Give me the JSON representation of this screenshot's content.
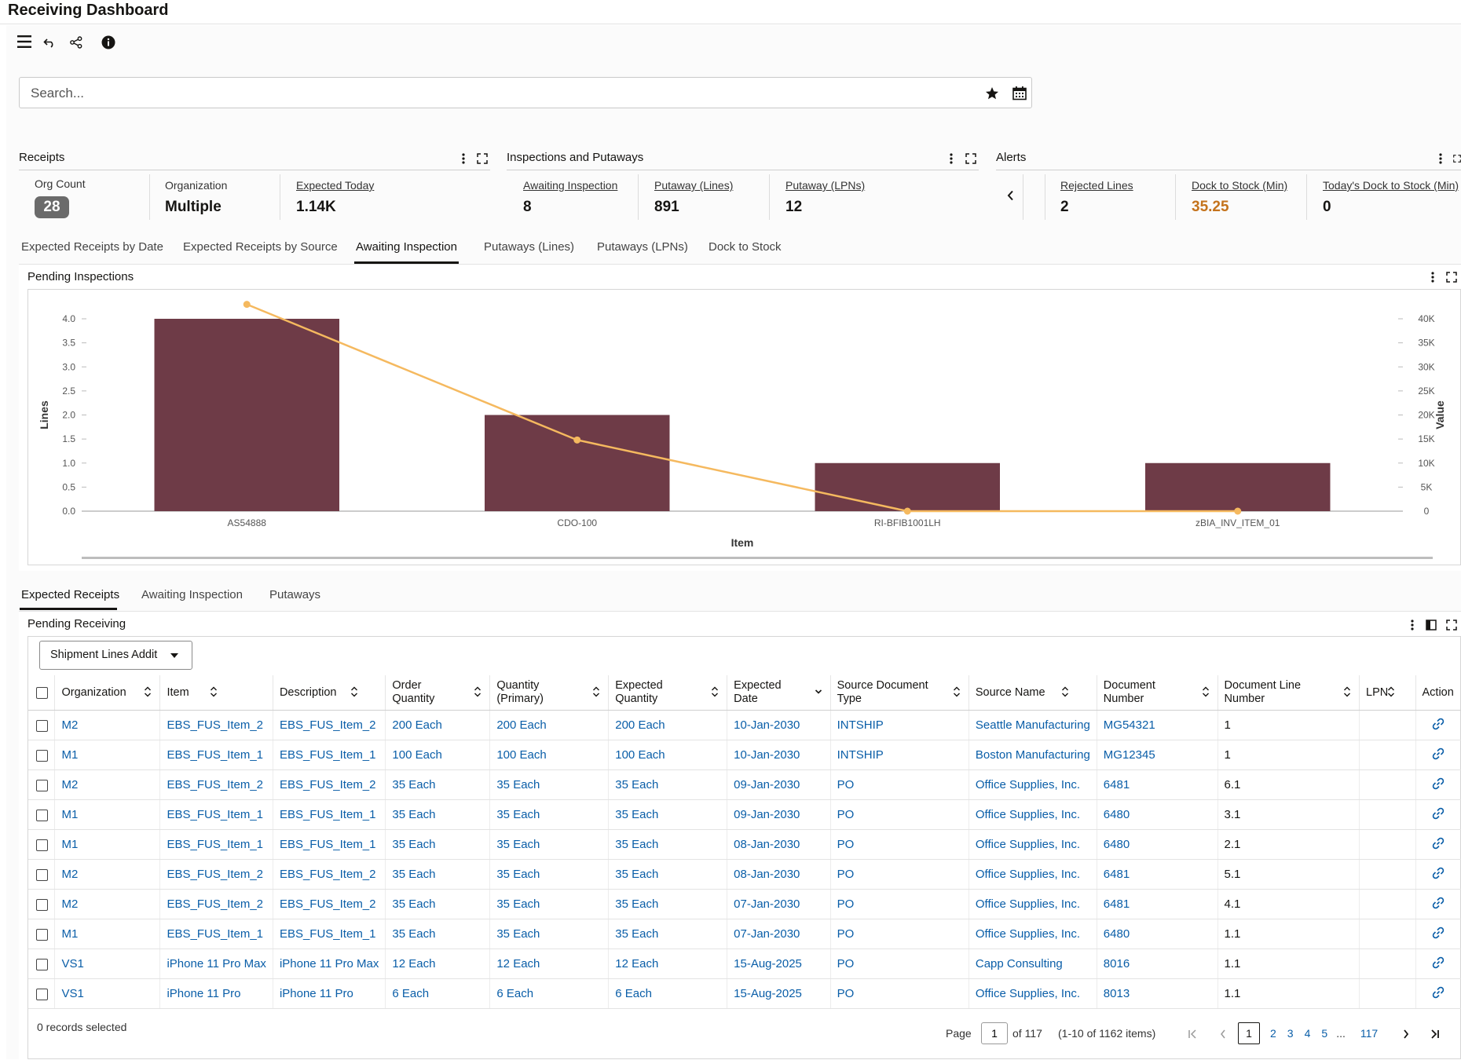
{
  "header": {
    "title": "Receiving Dashboard"
  },
  "toolbar": {
    "icons": [
      "menu-icon",
      "undo-icon",
      "share-icon",
      "info-icon"
    ]
  },
  "search": {
    "placeholder": "Search..."
  },
  "receipts": {
    "title": "Receipts",
    "org_count_label": "Org Count",
    "org_count_value": "28",
    "organization_label": "Organization",
    "organization_value": "Multiple",
    "expected_today_label": "Expected Today",
    "expected_today_value": "1.14K"
  },
  "inspections": {
    "title": "Inspections and Putaways",
    "awaiting_label": "Awaiting Inspection",
    "awaiting_value": "8",
    "putaway_lines_label": "Putaway (Lines)",
    "putaway_lines_value": "891",
    "putaway_lpns_label": "Putaway (LPNs)",
    "putaway_lpns_value": "12"
  },
  "alerts": {
    "title": "Alerts",
    "rejected_label": "Rejected Lines",
    "rejected_value": "2",
    "dock_min_label": "Dock to Stock (Min)",
    "dock_min_value": "35.25",
    "today_dock_label": "Today's Dock to Stock (Min)",
    "today_dock_value": "0"
  },
  "tabs_top": [
    "Expected Receipts by Date",
    "Expected Receipts by Source",
    "Awaiting Inspection",
    "Putaways (Lines)",
    "Putaways (LPNs)",
    "Dock to Stock"
  ],
  "colors": {
    "bar": "#6e3b47",
    "line": "#f5b95f",
    "link": "#0a5ea8",
    "accent_value": "#c4731c",
    "badge": "#6b6b6b"
  },
  "chart_panel": {
    "title": "Pending Inspections"
  },
  "chart_data": {
    "type": "bar",
    "title": "Pending Inspections",
    "xlabel": "Item",
    "ylabel": "Lines",
    "y2label": "Value",
    "categories": [
      "AS54888",
      "CDO-100",
      "RI-BFIB1001LH",
      "zBIA_INV_ITEM_01"
    ],
    "series": [
      {
        "name": "Lines",
        "type": "bar",
        "axis": "left",
        "values": [
          4,
          2,
          1,
          1
        ]
      },
      {
        "name": "Value",
        "type": "line",
        "axis": "right",
        "values": [
          43000,
          14800,
          0,
          0
        ]
      }
    ],
    "ylim": [
      0,
      4
    ],
    "y2lim": [
      0,
      40000
    ],
    "yticks": [
      "0.0",
      "0.5",
      "1.0",
      "1.5",
      "2.0",
      "2.5",
      "3.0",
      "3.5",
      "4.0"
    ],
    "y2ticks": [
      "0",
      "5K",
      "10K",
      "15K",
      "20K",
      "25K",
      "30K",
      "35K",
      "40K"
    ]
  },
  "tabs_bottom": [
    "Expected Receipts",
    "Awaiting Inspection",
    "Putaways"
  ],
  "table_panel": {
    "title": "Pending Receiving",
    "view_select": "Shipment Lines Addit"
  },
  "table": {
    "columns": [
      "Organization",
      "Item",
      "Description",
      "Order Quantity",
      "Quantity (Primary)",
      "Expected Quantity",
      "Expected Date",
      "Source Document Type",
      "Source Name",
      "Document Number",
      "Document Line Number",
      "LPN",
      "Action"
    ],
    "rows": [
      [
        "M2",
        "EBS_FUS_Item_2",
        "EBS_FUS_Item_2",
        "200 Each",
        "200 Each",
        "200 Each",
        "10-Jan-2030",
        "INTSHIP",
        "Seattle Manufacturing",
        "MG54321",
        "1",
        ""
      ],
      [
        "M1",
        "EBS_FUS_Item_1",
        "EBS_FUS_Item_1",
        "100 Each",
        "100 Each",
        "100 Each",
        "10-Jan-2030",
        "INTSHIP",
        "Boston Manufacturing",
        "MG12345",
        "1",
        ""
      ],
      [
        "M2",
        "EBS_FUS_Item_2",
        "EBS_FUS_Item_2",
        "35 Each",
        "35 Each",
        "35 Each",
        "09-Jan-2030",
        "PO",
        "Office Supplies, Inc.",
        "6481",
        "6.1",
        ""
      ],
      [
        "M1",
        "EBS_FUS_Item_1",
        "EBS_FUS_Item_1",
        "35 Each",
        "35 Each",
        "35 Each",
        "09-Jan-2030",
        "PO",
        "Office Supplies, Inc.",
        "6480",
        "3.1",
        ""
      ],
      [
        "M1",
        "EBS_FUS_Item_1",
        "EBS_FUS_Item_1",
        "35 Each",
        "35 Each",
        "35 Each",
        "08-Jan-2030",
        "PO",
        "Office Supplies, Inc.",
        "6480",
        "2.1",
        ""
      ],
      [
        "M2",
        "EBS_FUS_Item_2",
        "EBS_FUS_Item_2",
        "35 Each",
        "35 Each",
        "35 Each",
        "08-Jan-2030",
        "PO",
        "Office Supplies, Inc.",
        "6481",
        "5.1",
        ""
      ],
      [
        "M2",
        "EBS_FUS_Item_2",
        "EBS_FUS_Item_2",
        "35 Each",
        "35 Each",
        "35 Each",
        "07-Jan-2030",
        "PO",
        "Office Supplies, Inc.",
        "6481",
        "4.1",
        ""
      ],
      [
        "M1",
        "EBS_FUS_Item_1",
        "EBS_FUS_Item_1",
        "35 Each",
        "35 Each",
        "35 Each",
        "07-Jan-2030",
        "PO",
        "Office Supplies, Inc.",
        "6480",
        "1.1",
        ""
      ],
      [
        "VS1",
        "iPhone 11 Pro Max",
        "iPhone 11 Pro Max",
        "12 Each",
        "12 Each",
        "12 Each",
        "15-Aug-2025",
        "PO",
        "Capp Consulting",
        "8016",
        "1.1",
        ""
      ],
      [
        "VS1",
        "iPhone 11 Pro",
        "iPhone 11 Pro",
        "6 Each",
        "6 Each",
        "6 Each",
        "15-Aug-2025",
        "PO",
        "Office Supplies, Inc.",
        "8013",
        "1.1",
        ""
      ]
    ]
  },
  "footer": {
    "selected": "0 records selected",
    "page_label": "Page",
    "page_value": "1",
    "of_pages": "of 117",
    "items_range": "(1-10 of 1162 items)",
    "pages": [
      "1",
      "2",
      "3",
      "4",
      "5",
      "...",
      "117"
    ]
  }
}
